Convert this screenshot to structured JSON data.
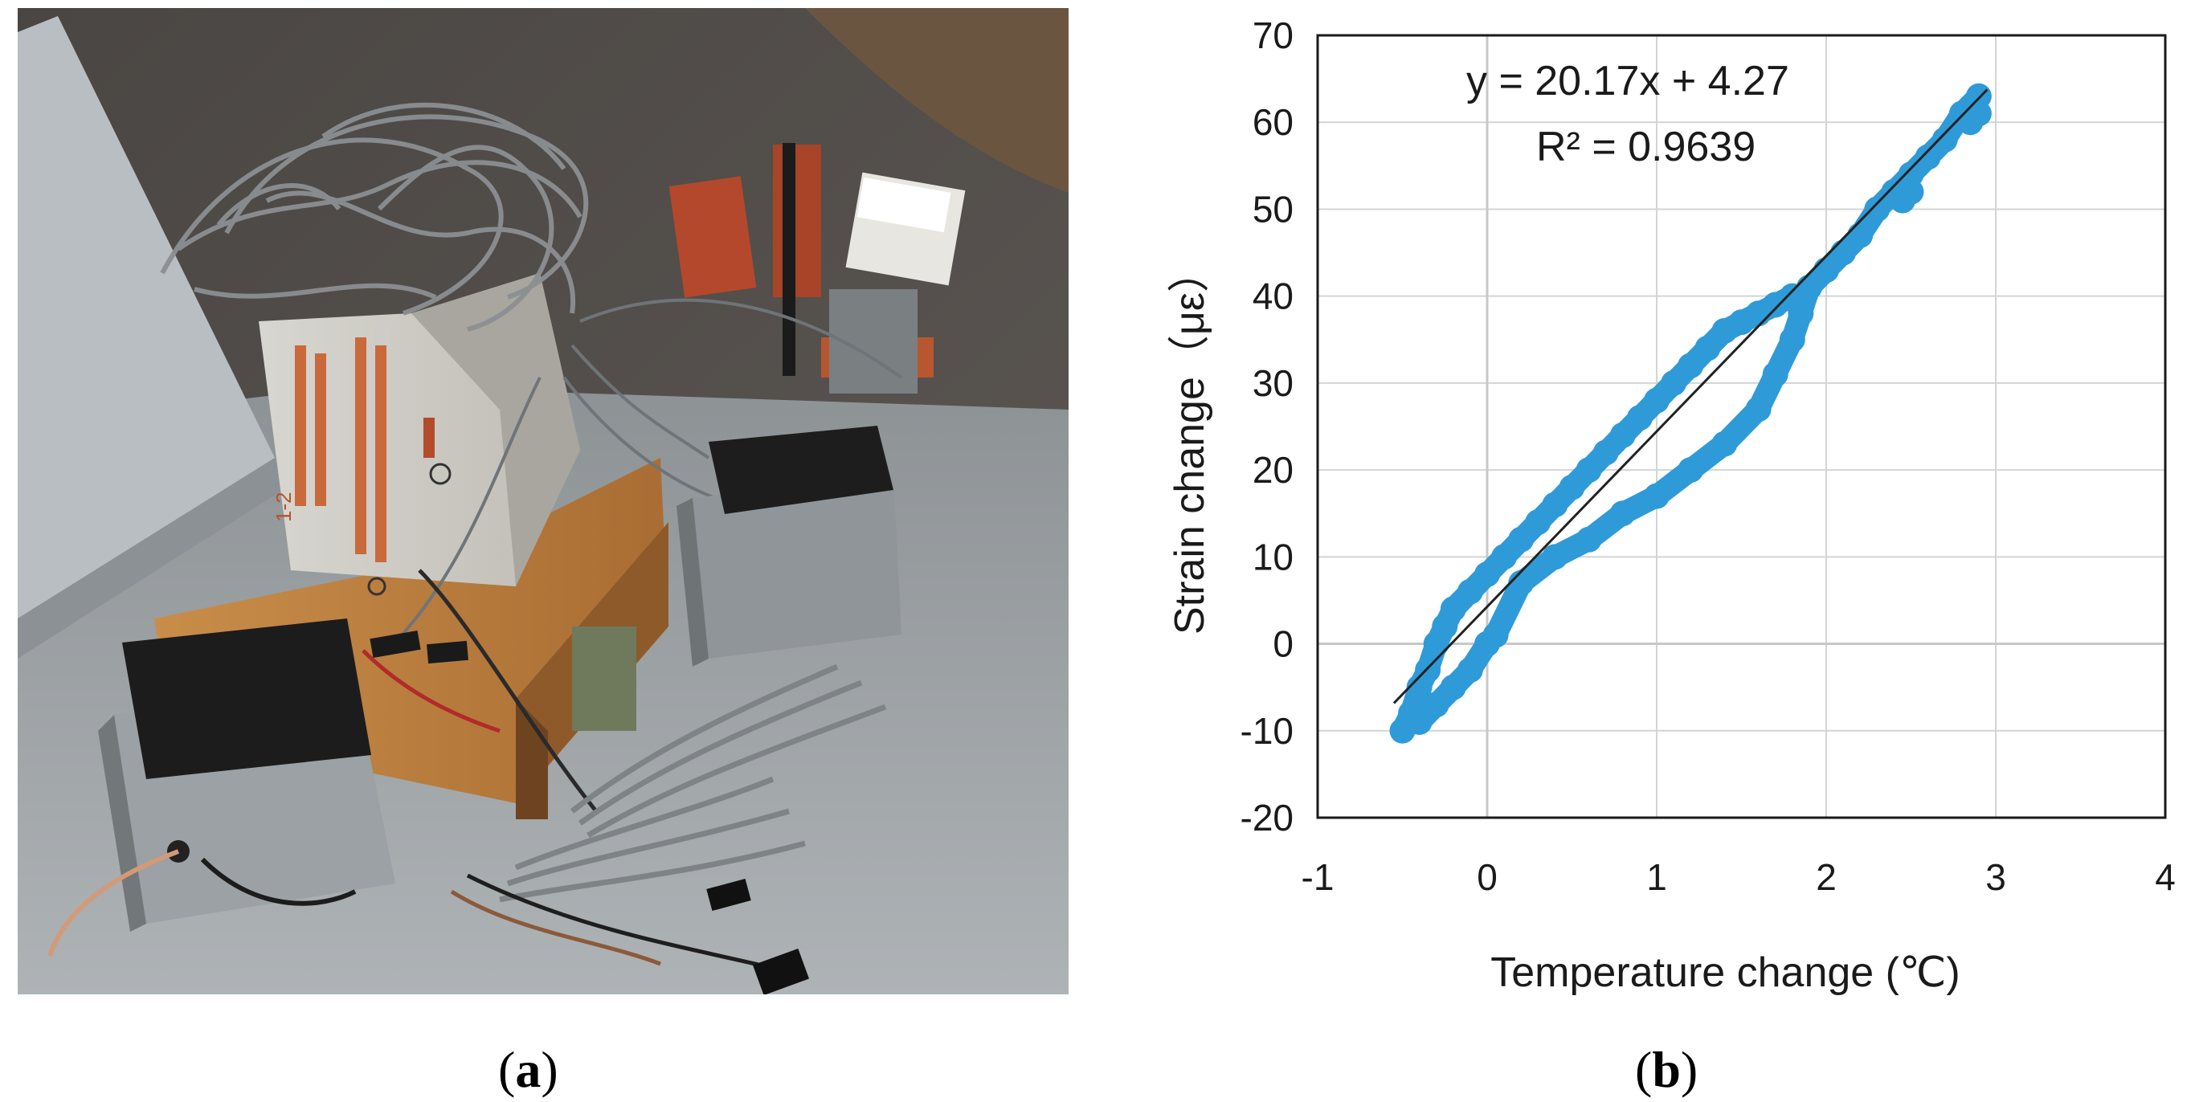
{
  "captions": {
    "a": "a",
    "b": "b"
  },
  "photo": {
    "subject": "concrete specimen with wired strain gauges on a wooden base, wireless sensor boxes and antenna on a rooftop",
    "label_on_block": "1-2"
  },
  "chart_data": {
    "type": "scatter",
    "xlabel": "Temperature change (℃)",
    "ylabel": "Strain change（με）",
    "xlim": [
      -1,
      4
    ],
    "ylim": [
      -20,
      70
    ],
    "xticks": [
      "-1",
      "0",
      "1",
      "2",
      "3",
      "4"
    ],
    "yticks": [
      "-20",
      "-10",
      "0",
      "10",
      "20",
      "30",
      "40",
      "50",
      "60",
      "70"
    ],
    "grid": true,
    "series": [
      {
        "color": "#2e9bd8",
        "points": [
          [
            -0.5,
            -10
          ],
          [
            -0.45,
            -8
          ],
          [
            -0.4,
            -5
          ],
          [
            -0.35,
            -3
          ],
          [
            -0.3,
            0
          ],
          [
            -0.25,
            2
          ],
          [
            -0.2,
            4
          ],
          [
            -0.1,
            6
          ],
          [
            0.0,
            8
          ],
          [
            0.1,
            10
          ],
          [
            0.2,
            12
          ],
          [
            0.3,
            14
          ],
          [
            0.4,
            16
          ],
          [
            0.5,
            18
          ],
          [
            0.6,
            20
          ],
          [
            0.7,
            22
          ],
          [
            0.8,
            24
          ],
          [
            0.9,
            26
          ],
          [
            1.0,
            28
          ],
          [
            1.1,
            30
          ],
          [
            1.2,
            32
          ],
          [
            1.3,
            34
          ],
          [
            1.4,
            36
          ],
          [
            1.5,
            37
          ],
          [
            1.6,
            38
          ],
          [
            1.7,
            39
          ],
          [
            1.8,
            40
          ],
          [
            -0.4,
            -9
          ],
          [
            -0.3,
            -7
          ],
          [
            -0.2,
            -5
          ],
          [
            -0.1,
            -3
          ],
          [
            0.0,
            0
          ],
          [
            0.05,
            1
          ],
          [
            0.2,
            7
          ],
          [
            0.4,
            10
          ],
          [
            0.6,
            12
          ],
          [
            0.8,
            15
          ],
          [
            1.0,
            17
          ],
          [
            1.2,
            20
          ],
          [
            1.4,
            23
          ],
          [
            1.6,
            27
          ],
          [
            1.7,
            31
          ],
          [
            1.8,
            35
          ],
          [
            1.85,
            38
          ],
          [
            1.9,
            41
          ],
          [
            2.0,
            43
          ],
          [
            2.1,
            45
          ],
          [
            2.2,
            47
          ],
          [
            2.3,
            50
          ],
          [
            2.4,
            52
          ],
          [
            2.5,
            54
          ],
          [
            2.6,
            56
          ],
          [
            2.7,
            58
          ],
          [
            2.8,
            61
          ],
          [
            2.9,
            63
          ],
          [
            2.45,
            51
          ],
          [
            2.5,
            52
          ],
          [
            2.85,
            60
          ],
          [
            2.9,
            61
          ]
        ]
      }
    ],
    "trendline": {
      "slope": 20.17,
      "intercept": 4.27,
      "x_range": [
        -0.55,
        2.95
      ],
      "color": "#222222"
    },
    "annotations": {
      "equation": "y = 20.17x + 4.27",
      "r_squared": "R² = 0.9639"
    }
  }
}
